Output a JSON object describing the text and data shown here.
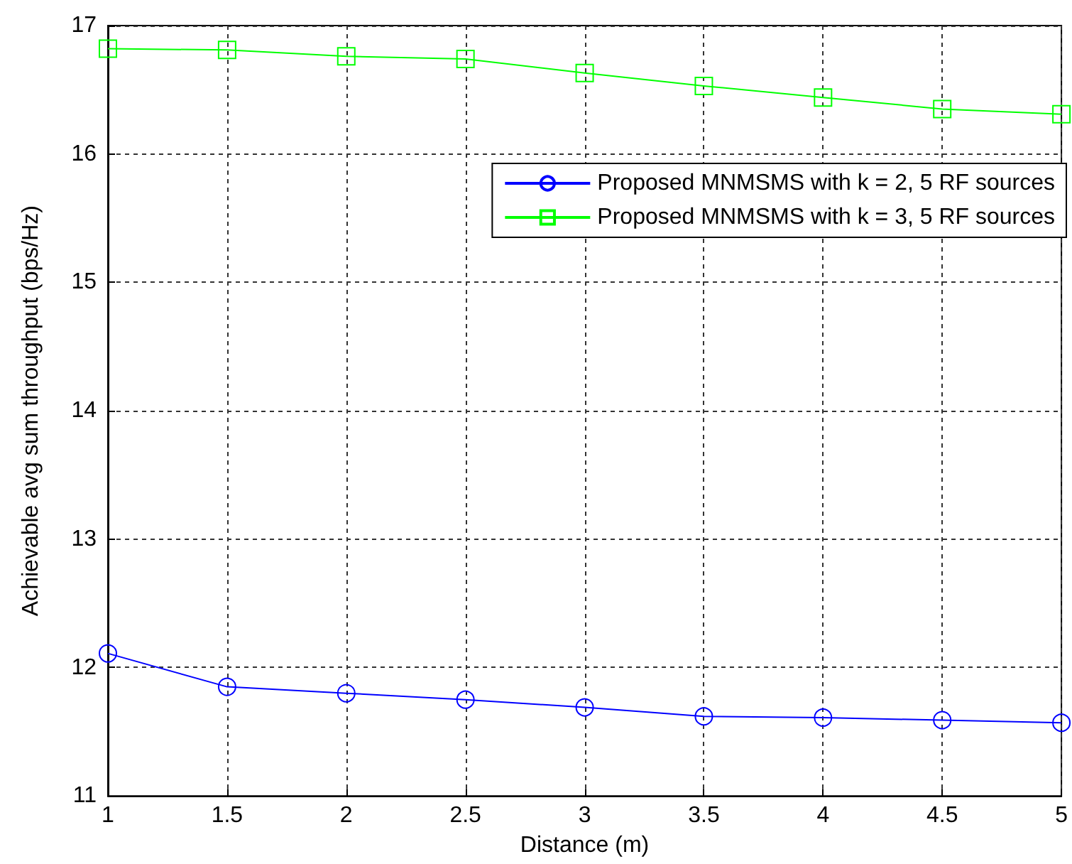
{
  "chart_data": {
    "type": "line",
    "xlabel": "Distance (m)",
    "ylabel": "Achievable avg sum throughput (bps/Hz)",
    "x": [
      1,
      1.5,
      2,
      2.5,
      3,
      3.5,
      4,
      4.5,
      5
    ],
    "series": [
      {
        "name": "Proposed MNMSMS with k = 2, 5 RF sources",
        "color": "#0000ff",
        "marker": "circle",
        "values": [
          12.11,
          11.85,
          11.8,
          11.75,
          11.69,
          11.62,
          11.61,
          11.59,
          11.57
        ]
      },
      {
        "name": "Proposed MNMSMS with k = 3, 5 RF sources",
        "color": "#00ff00",
        "marker": "square",
        "values": [
          16.82,
          16.81,
          16.76,
          16.74,
          16.63,
          16.53,
          16.44,
          16.35,
          16.31
        ]
      }
    ],
    "xlim": [
      1,
      5
    ],
    "xticks": [
      1,
      1.5,
      2,
      2.5,
      3,
      3.5,
      4,
      4.5,
      5
    ],
    "ylim": [
      11,
      17
    ],
    "yticks": [
      11,
      12,
      13,
      14,
      15,
      16,
      17
    ],
    "grid": true,
    "legend": "top right",
    "line_style": "solid"
  }
}
